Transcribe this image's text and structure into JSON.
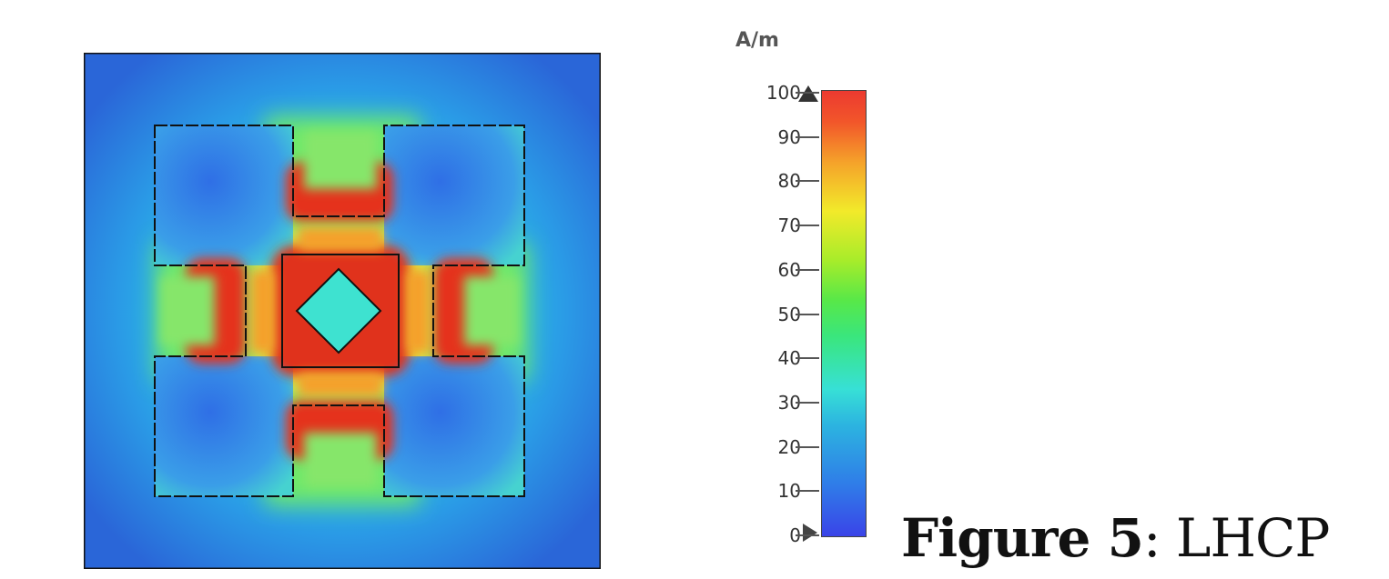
{
  "colorbar": {
    "unit": "A/m",
    "ticks": [
      "100",
      "90",
      "80",
      "70",
      "60",
      "50",
      "40",
      "30",
      "20",
      "10",
      "0"
    ],
    "min": 0,
    "max": 100,
    "colors": [
      "#3a44e8",
      "#2cb4e0",
      "#3ae67c",
      "#f2ea2a",
      "#ec3a30"
    ]
  },
  "caption": {
    "label": "Figure 5",
    "separator": ":",
    "text": " LHCP"
  }
}
